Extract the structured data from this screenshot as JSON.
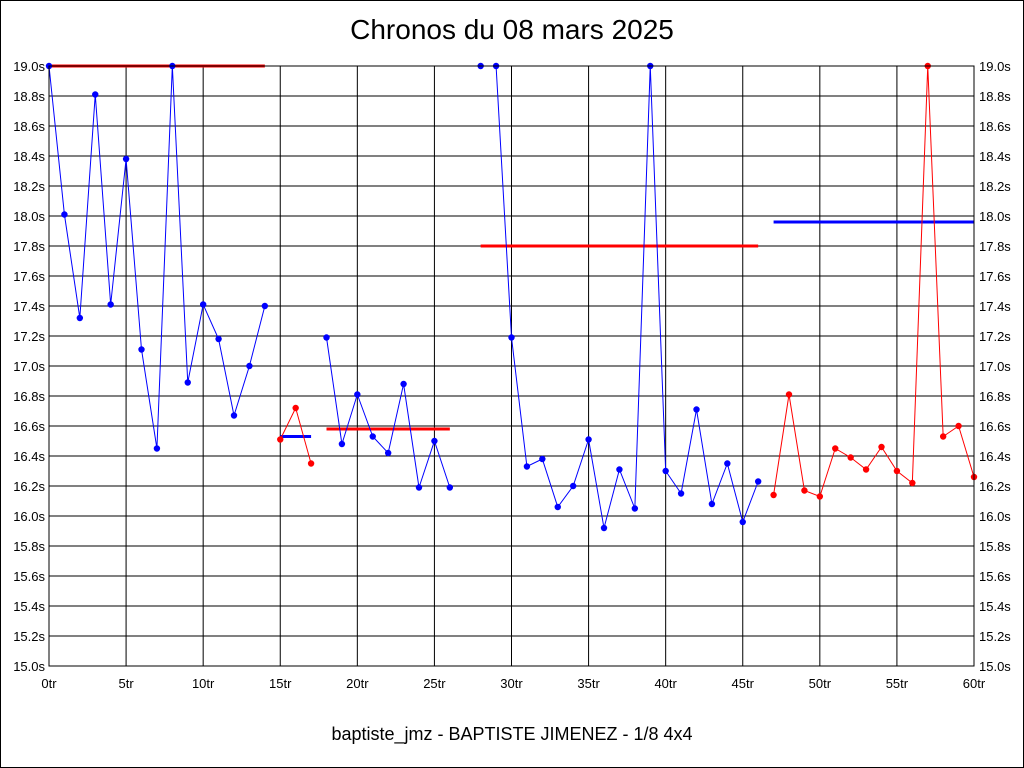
{
  "chart_data": {
    "type": "line",
    "title": "Chronos du 08 mars 2025",
    "footer": "baptiste_jmz - BAPTISTE JIMENEZ - 1/8 4x4",
    "xlim": [
      0,
      60
    ],
    "ylim": [
      15.0,
      19.0
    ],
    "x_ticks": [
      0,
      5,
      10,
      15,
      20,
      25,
      30,
      35,
      40,
      45,
      50,
      55,
      60
    ],
    "x_tick_labels": [
      "0tr",
      "5tr",
      "10tr",
      "15tr",
      "20tr",
      "25tr",
      "30tr",
      "35tr",
      "40tr",
      "45tr",
      "50tr",
      "55tr",
      "60tr"
    ],
    "y_ticks": [
      15.0,
      15.2,
      15.4,
      15.6,
      15.8,
      16.0,
      16.2,
      16.4,
      16.6,
      16.8,
      17.0,
      17.2,
      17.4,
      17.6,
      17.8,
      18.0,
      18.2,
      18.4,
      18.6,
      18.8,
      19.0
    ],
    "y_tick_labels": [
      "15.0s",
      "15.2s",
      "15.4s",
      "15.6s",
      "15.8s",
      "16.0s",
      "16.2s",
      "16.4s",
      "16.6s",
      "16.8s",
      "17.0s",
      "17.2s",
      "17.4s",
      "17.6s",
      "17.8s",
      "18.0s",
      "18.2s",
      "18.4s",
      "18.6s",
      "18.8s",
      "19.0s"
    ],
    "grid": true,
    "colors": {
      "blue": "#0000ff",
      "red": "#ff0000",
      "grid": "#000000"
    },
    "series": [
      {
        "color": "#0000ff",
        "points": [
          [
            0,
            19.0
          ],
          [
            1,
            18.01
          ],
          [
            2,
            17.32
          ],
          [
            3,
            18.81
          ],
          [
            4,
            17.41
          ],
          [
            5,
            18.38
          ],
          [
            6,
            17.11
          ],
          [
            7,
            16.45
          ],
          [
            8,
            19.0
          ],
          [
            9,
            16.89
          ],
          [
            10,
            17.41
          ],
          [
            11,
            17.18
          ],
          [
            12,
            16.67
          ],
          [
            13,
            17.0
          ],
          [
            14,
            17.4
          ]
        ]
      },
      {
        "color": "#ff0000",
        "points": [
          [
            15,
            16.51
          ],
          [
            16,
            16.72
          ],
          [
            17,
            16.35
          ]
        ]
      },
      {
        "color": "#0000ff",
        "points": [
          [
            18,
            17.19
          ],
          [
            19,
            16.48
          ],
          [
            20,
            16.81
          ],
          [
            21,
            16.53
          ],
          [
            22,
            16.42
          ],
          [
            23,
            16.88
          ],
          [
            24,
            16.19
          ],
          [
            25,
            16.5
          ],
          [
            26,
            16.19
          ]
        ]
      },
      {
        "color": "#0000ff",
        "points": [
          [
            28,
            19.0
          ],
          [
            29,
            19.0
          ],
          [
            30,
            17.19
          ],
          [
            31,
            16.33
          ],
          [
            32,
            16.38
          ],
          [
            33,
            16.06
          ],
          [
            34,
            16.2
          ],
          [
            35,
            16.51
          ],
          [
            36,
            15.92
          ],
          [
            37,
            16.31
          ],
          [
            38,
            16.05
          ],
          [
            39,
            19.0
          ],
          [
            40,
            16.3
          ],
          [
            41,
            16.15
          ],
          [
            42,
            16.71
          ],
          [
            43,
            16.08
          ],
          [
            44,
            16.35
          ],
          [
            45,
            15.96
          ],
          [
            46,
            16.23
          ]
        ]
      },
      {
        "color": "#ff0000",
        "points": [
          [
            47,
            16.14
          ],
          [
            48,
            16.81
          ],
          [
            49,
            16.17
          ],
          [
            50,
            16.13
          ],
          [
            51,
            16.45
          ],
          [
            52,
            16.39
          ],
          [
            53,
            16.31
          ],
          [
            54,
            16.46
          ],
          [
            55,
            16.3
          ],
          [
            56,
            16.22
          ],
          [
            57,
            19.0
          ],
          [
            58,
            16.53
          ],
          [
            59,
            16.6
          ],
          [
            60,
            16.26
          ]
        ]
      }
    ],
    "reference_lines": [
      {
        "color": "#ff0000",
        "x": [
          0,
          14
        ],
        "y": 19.0
      },
      {
        "color": "#0000ff",
        "x": [
          15,
          17
        ],
        "y": 16.53
      },
      {
        "color": "#ff0000",
        "x": [
          18,
          26
        ],
        "y": 16.58
      },
      {
        "color": "#ff0000",
        "x": [
          28,
          46
        ],
        "y": 17.8
      },
      {
        "color": "#0000ff",
        "x": [
          47,
          60
        ],
        "y": 17.96
      }
    ]
  }
}
